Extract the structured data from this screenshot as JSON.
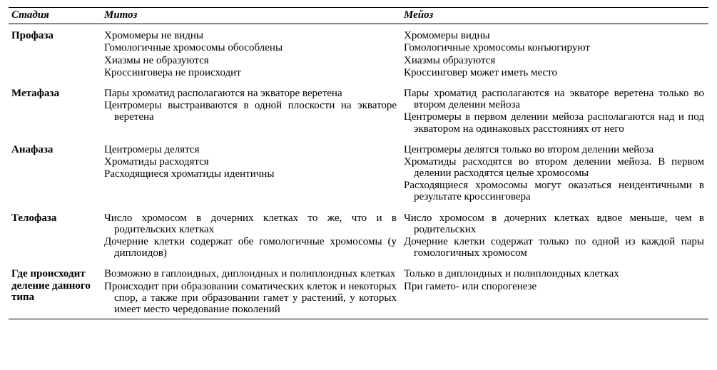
{
  "headers": {
    "stage": "Стадия",
    "mitosis": "Митоз",
    "meiosis": "Мейоз"
  },
  "rows": [
    {
      "stage": "Профаза",
      "mitosis": [
        "Хромомеры не видны",
        "Гомологичные хромосомы обособлены",
        "Хиазмы не образуются",
        "Кроссинговера не происходит"
      ],
      "meiosis": [
        "Хромомеры видны",
        "Гомологичные хромосомы конъюгируют",
        "Хиазмы образуются",
        "Кроссинговер может иметь место"
      ]
    },
    {
      "stage": "Метафаза",
      "mitosis": [
        "Пары хроматид располагаются на экваторе веретена",
        "Центромеры выстраиваются в одной плоскости на экваторе веретена"
      ],
      "meiosis": [
        "Пары хроматид располагаются на экваторе веретена только во втором делении мейоза",
        "Центромеры в первом делении мейоза располагаются над и под экватором на одинаковых расстояниях от него"
      ]
    },
    {
      "stage": "Анафаза",
      "mitosis": [
        "Центромеры делятся",
        "Хроматиды расходятся",
        "Расходящиеся хроматиды идентичны"
      ],
      "meiosis": [
        "Центромеры делятся только во втором делении мейоза",
        "Хроматиды расходятся во втором делении мейоза. В первом делении расходятся целые хромосомы",
        "Расходящиеся хромосомы могут оказаться неидентичными в результате кроссинговера"
      ]
    },
    {
      "stage": "Телофаза",
      "mitosis": [
        "Число хромосом в дочерних клетках то же, что и в родительских клетках",
        "Дочерние клетки содержат обе гомологичные хромосомы (у диплоидов)"
      ],
      "meiosis": [
        "Число хромосом в дочерних клетках вдвое меньше, чем в родительских",
        "Дочерние клетки содержат только по одной из каждой пары гомологичных хромосом"
      ]
    },
    {
      "stage": "Где происходит деление данного типа",
      "mitosis": [
        "Возможно в гаплоидных, диплоидных и полиплоидных клетках",
        "Происходит при образовании соматических клеток и некоторых спор, а также при образовании гамет у растений, у которых имеет место чередование поколений"
      ],
      "meiosis": [
        "Только в диплоидных и полиплоидных клетках",
        "При гамето- или спорогенезе"
      ]
    }
  ]
}
